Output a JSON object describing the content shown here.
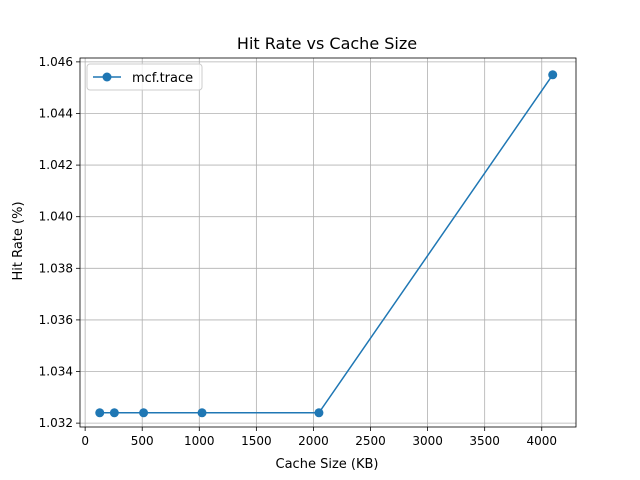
{
  "chart_data": {
    "type": "line",
    "title": "Hit Rate vs Cache Size",
    "xlabel": "Cache Size (KB)",
    "ylabel": "Hit Rate (%)",
    "xlim": [
      -45,
      4300
    ],
    "ylim": [
      1.03185,
      1.04615
    ],
    "xticks": [
      0,
      500,
      1000,
      1500,
      2000,
      2500,
      3000,
      3500,
      4000
    ],
    "xtick_labels": [
      "0",
      "500",
      "1000",
      "1500",
      "2000",
      "2500",
      "3000",
      "3500",
      "4000"
    ],
    "yticks": [
      1.032,
      1.034,
      1.036,
      1.038,
      1.04,
      1.042,
      1.044,
      1.046
    ],
    "ytick_labels": [
      "1.032",
      "1.034",
      "1.036",
      "1.038",
      "1.040",
      "1.042",
      "1.044",
      "1.046"
    ],
    "grid": true,
    "legend_position": "top-left",
    "series": [
      {
        "name": "mcf.trace",
        "color": "#1f77b4",
        "marker": "circle",
        "x": [
          128,
          256,
          512,
          1024,
          2048,
          4096
        ],
        "y": [
          1.0324,
          1.0324,
          1.0324,
          1.0324,
          1.0324,
          1.0455
        ]
      }
    ]
  }
}
